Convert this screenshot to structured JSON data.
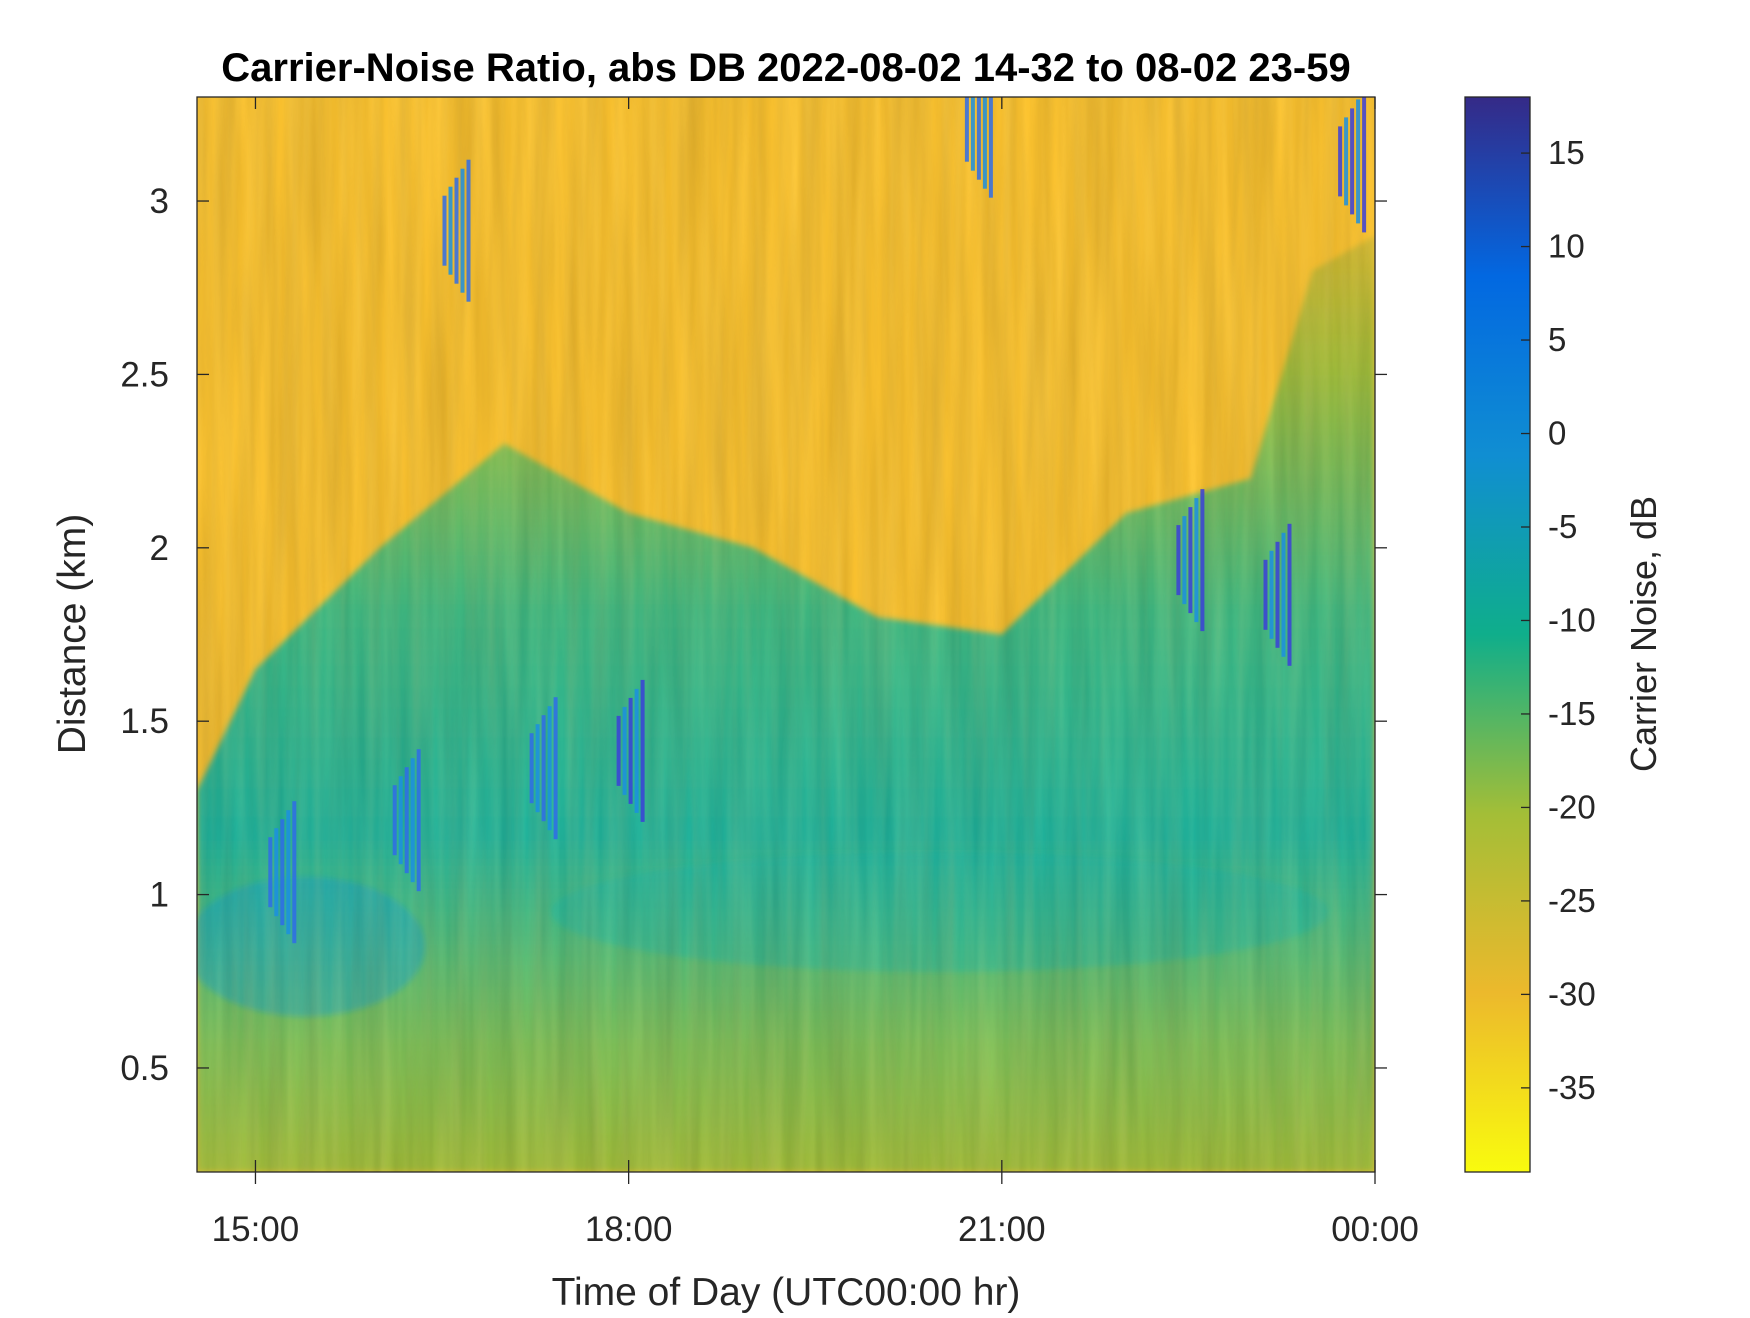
{
  "chart_data": {
    "type": "heatmap",
    "title": "Carrier-Noise Ratio, abs DB 2022-08-02 14-32 to 08-02 23-59",
    "xlabel": "Time of Day (UTC00:00 hr)",
    "ylabel": "Distance (km)",
    "x_unit": "hours (UTC)",
    "x_range": [
      14.53,
      24.0
    ],
    "x_ticks": [
      15,
      18,
      21,
      24
    ],
    "x_tick_labels": [
      "15:00",
      "18:00",
      "21:00",
      "00:00"
    ],
    "y_range": [
      0.2,
      3.3
    ],
    "y_ticks": [
      0.5,
      1,
      1.5,
      2,
      2.5,
      3
    ],
    "y_tick_labels": [
      "0.5",
      "1",
      "1.5",
      "2",
      "2.5",
      "3"
    ],
    "colorbar": {
      "label": "Carrier Noise, dB",
      "range": [
        -39.5,
        18
      ],
      "ticks": [
        15,
        10,
        5,
        0,
        -5,
        -10,
        -15,
        -20,
        -25,
        -30,
        -35
      ],
      "tick_labels": [
        "15",
        "10",
        "5",
        "0",
        "-5",
        "-10",
        "-15",
        "-20",
        "-25",
        "-30",
        "-35"
      ],
      "colormap": "parula",
      "colormap_colors": [
        "#352a87",
        "#0268e1",
        "#108ed2",
        "#0fae8b",
        "#a3be37",
        "#ecb92c",
        "#f9fb0e"
      ]
    },
    "grid": false,
    "boundary_layer_top_km": [
      [
        14.53,
        1.3
      ],
      [
        15.0,
        1.65
      ],
      [
        16.0,
        2.0
      ],
      [
        17.0,
        2.3
      ],
      [
        18.0,
        2.1
      ],
      [
        19.0,
        2.0
      ],
      [
        20.0,
        1.8
      ],
      [
        21.0,
        1.75
      ],
      [
        22.0,
        2.1
      ],
      [
        23.0,
        2.2
      ],
      [
        23.5,
        2.8
      ],
      [
        24.0,
        2.9
      ]
    ],
    "cloud_features": [
      {
        "time_h": 15.2,
        "distance_km": 1.05,
        "value_db": 0
      },
      {
        "time_h": 16.2,
        "distance_km": 1.2,
        "value_db": 5
      },
      {
        "time_h": 16.6,
        "distance_km": 2.9,
        "value_db": 5
      },
      {
        "time_h": 17.3,
        "distance_km": 1.35,
        "value_db": 5
      },
      {
        "time_h": 18.0,
        "distance_km": 1.4,
        "value_db": 8
      },
      {
        "time_h": 20.8,
        "distance_km": 3.2,
        "value_db": 5
      },
      {
        "time_h": 22.5,
        "distance_km": 1.95,
        "value_db": 8
      },
      {
        "time_h": 23.2,
        "distance_km": 1.85,
        "value_db": 10
      },
      {
        "time_h": 23.8,
        "distance_km": 3.1,
        "value_db": 8
      }
    ]
  }
}
